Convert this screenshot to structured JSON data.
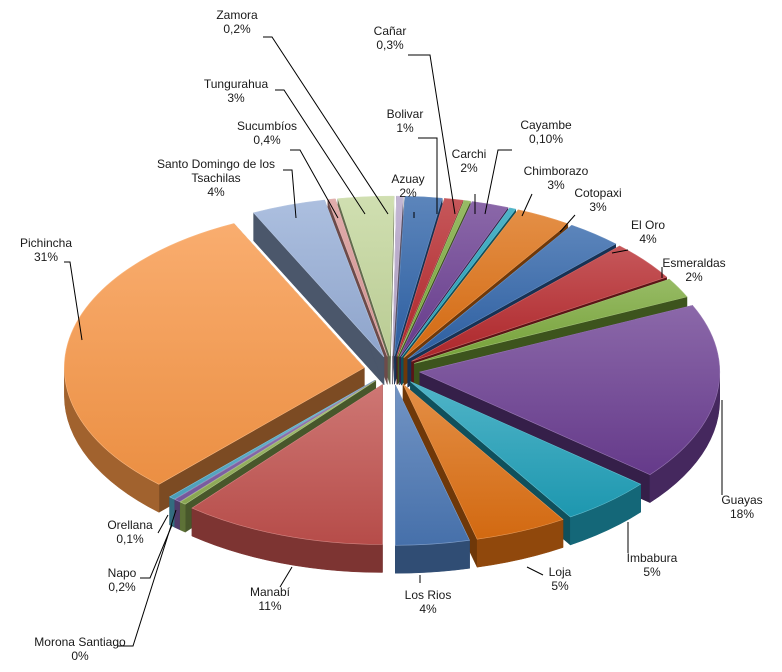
{
  "chart_data": {
    "type": "pie",
    "style": "3d-exploded",
    "legend": "none",
    "slices": [
      {
        "label": "Azuay",
        "value_text": "2%",
        "value": 2,
        "color": "#2e63a8"
      },
      {
        "label": "Bolivar",
        "value_text": "1%",
        "value": 1,
        "color": "#b6282c"
      },
      {
        "label": "Cañar",
        "value_text": "0,3%",
        "value": 0.3,
        "color": "#7aa83a"
      },
      {
        "label": "Carchi",
        "value_text": "2%",
        "value": 2,
        "color": "#6a3d91"
      },
      {
        "label": "Cayambe",
        "value_text": "0,10%",
        "value": 0.1,
        "color": "#1f9fb8"
      },
      {
        "label": "Chimborazo",
        "value_text": "3%",
        "value": 3,
        "color": "#dd6f12"
      },
      {
        "label": "Cotopaxi",
        "value_text": "3%",
        "value": 3,
        "color": "#2e63a8"
      },
      {
        "label": "El Oro",
        "value_text": "4%",
        "value": 4,
        "color": "#b6282c"
      },
      {
        "label": "Esmeraldas",
        "value_text": "2%",
        "value": 2,
        "color": "#7aa83a"
      },
      {
        "label": "Guayas",
        "value_text": "18%",
        "value": 18,
        "color": "#6a3d91"
      },
      {
        "label": "Imbabura",
        "value_text": "5%",
        "value": 5,
        "color": "#1f9fb8"
      },
      {
        "label": "Loja",
        "value_text": "5%",
        "value": 5,
        "color": "#dd6f12"
      },
      {
        "label": "Los Rios",
        "value_text": "4%",
        "value": 4,
        "color": "#4a76b3"
      },
      {
        "label": "Manabí",
        "value_text": "11%",
        "value": 11,
        "color": "#c0504d"
      },
      {
        "label": "Morona Santiago",
        "value_text": "0%",
        "value": 0,
        "color": "#8fae55"
      },
      {
        "label": "Napo",
        "value_text": "0,2%",
        "value": 0.2,
        "color": "#7a5ba3"
      },
      {
        "label": "Orellana",
        "value_text": "0,1%",
        "value": 0.1,
        "color": "#4fa6c4"
      },
      {
        "label": "Pichincha",
        "value_text": "31%",
        "value": 31,
        "color": "#f79646"
      },
      {
        "label": "Santo Domingo de los Tsachilas",
        "value_text": "4%",
        "value": 4,
        "color": "#95add6"
      },
      {
        "label": "Sucumbíos",
        "value_text": "0,4%",
        "value": 0.4,
        "color": "#d99694"
      },
      {
        "label": "Tungurahua",
        "value_text": "3%",
        "value": 3,
        "color": "#c3d69b"
      },
      {
        "label": "Zamora",
        "value_text": "0,2%",
        "value": 0.2,
        "color": "#b2a2c7"
      }
    ]
  }
}
